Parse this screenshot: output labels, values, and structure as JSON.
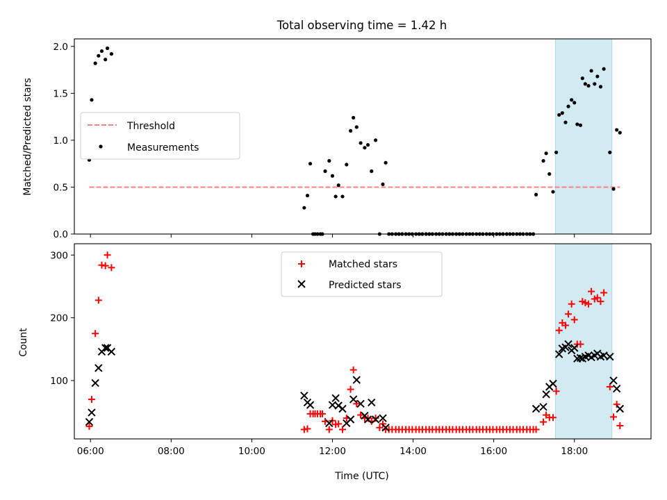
{
  "chart_data": [
    {
      "type": "scatter",
      "title": "Total observing time = 1.42 h",
      "xlabel": "",
      "ylabel": "Matched/Predicted stars",
      "xlim": [
        5.6,
        19.9
      ],
      "ylim": [
        0,
        2.08
      ],
      "yticks": [
        "0.0",
        "0.5",
        "1.0",
        "1.5",
        "2.0"
      ],
      "shaded_span": [
        17.53,
        18.93
      ],
      "shade_color": "#add8e6",
      "legend_loc": "center-left",
      "series": [
        {
          "name": "Threshold",
          "style": "dashed-line",
          "color": "#ff7f7f",
          "x": [
            5.97,
            19.13
          ],
          "y": [
            0.5,
            0.5
          ]
        },
        {
          "name": "Measurements",
          "style": "dot",
          "color": "#000000",
          "points": [
            [
              5.97,
              0.79
            ],
            [
              6.03,
              1.43
            ],
            [
              6.12,
              1.82
            ],
            [
              6.2,
              1.9
            ],
            [
              6.28,
              1.95
            ],
            [
              6.37,
              1.86
            ],
            [
              6.42,
              1.98
            ],
            [
              6.52,
              1.92
            ],
            [
              11.3,
              0.28
            ],
            [
              11.38,
              0.41
            ],
            [
              11.45,
              0.75
            ],
            [
              11.52,
              0
            ],
            [
              11.57,
              0
            ],
            [
              11.63,
              0
            ],
            [
              11.7,
              0
            ],
            [
              11.75,
              0
            ],
            [
              11.82,
              0.67
            ],
            [
              11.92,
              0.78
            ],
            [
              12.0,
              0.62
            ],
            [
              12.08,
              0.4
            ],
            [
              12.15,
              0.52
            ],
            [
              12.25,
              0.4
            ],
            [
              12.35,
              0.74
            ],
            [
              12.45,
              1.1
            ],
            [
              12.52,
              1.24
            ],
            [
              12.6,
              1.14
            ],
            [
              12.7,
              0.97
            ],
            [
              12.8,
              0.92
            ],
            [
              12.88,
              0.95
            ],
            [
              12.97,
              0.67
            ],
            [
              13.07,
              1.0
            ],
            [
              13.17,
              0
            ],
            [
              13.25,
              0.53
            ],
            [
              13.32,
              0.76
            ],
            [
              13.4,
              0
            ],
            [
              13.48,
              0
            ],
            [
              13.57,
              0
            ],
            [
              13.65,
              0
            ],
            [
              13.73,
              0
            ],
            [
              13.82,
              0
            ],
            [
              13.9,
              0
            ],
            [
              13.98,
              0
            ],
            [
              14.07,
              0
            ],
            [
              14.15,
              0
            ],
            [
              14.23,
              0
            ],
            [
              14.32,
              0
            ],
            [
              14.4,
              0
            ],
            [
              14.48,
              0
            ],
            [
              14.57,
              0
            ],
            [
              14.65,
              0
            ],
            [
              14.73,
              0
            ],
            [
              14.82,
              0
            ],
            [
              14.9,
              0
            ],
            [
              14.98,
              0
            ],
            [
              15.07,
              0
            ],
            [
              15.15,
              0
            ],
            [
              15.23,
              0
            ],
            [
              15.32,
              0
            ],
            [
              15.4,
              0
            ],
            [
              15.48,
              0
            ],
            [
              15.57,
              0
            ],
            [
              15.65,
              0
            ],
            [
              15.73,
              0
            ],
            [
              15.82,
              0
            ],
            [
              15.9,
              0
            ],
            [
              15.98,
              0
            ],
            [
              16.07,
              0
            ],
            [
              16.15,
              0
            ],
            [
              16.23,
              0
            ],
            [
              16.32,
              0
            ],
            [
              16.4,
              0
            ],
            [
              16.48,
              0
            ],
            [
              16.57,
              0
            ],
            [
              16.65,
              0
            ],
            [
              16.73,
              0
            ],
            [
              16.82,
              0
            ],
            [
              16.9,
              0
            ],
            [
              16.98,
              0
            ],
            [
              17.05,
              0.42
            ],
            [
              17.23,
              0.78
            ],
            [
              17.3,
              0.86
            ],
            [
              17.38,
              0.64
            ],
            [
              17.47,
              0.45
            ],
            [
              17.55,
              0.87
            ],
            [
              17.62,
              1.27
            ],
            [
              17.7,
              1.29
            ],
            [
              17.78,
              1.19
            ],
            [
              17.85,
              1.36
            ],
            [
              17.93,
              1.43
            ],
            [
              18.0,
              1.4
            ],
            [
              18.07,
              1.17
            ],
            [
              18.15,
              1.16
            ],
            [
              18.2,
              1.66
            ],
            [
              18.27,
              1.6
            ],
            [
              18.35,
              1.58
            ],
            [
              18.42,
              1.74
            ],
            [
              18.5,
              1.6
            ],
            [
              18.57,
              1.68
            ],
            [
              18.65,
              1.57
            ],
            [
              18.73,
              1.76
            ],
            [
              18.88,
              0.87
            ],
            [
              18.97,
              0.48
            ],
            [
              19.05,
              1.11
            ],
            [
              19.13,
              1.08
            ]
          ]
        }
      ]
    },
    {
      "type": "scatter",
      "title": "",
      "xlabel": "Time (UTC)",
      "ylabel": "Count",
      "xlim": [
        5.6,
        19.9
      ],
      "ylim": [
        7,
        318
      ],
      "yticks": [
        "100",
        "200",
        "300"
      ],
      "xticks": [
        "06:00",
        "08:00",
        "10:00",
        "12:00",
        "14:00",
        "16:00",
        "18:00"
      ],
      "shaded_span": [
        17.53,
        18.93
      ],
      "shade_color": "#add8e6",
      "legend_loc": "upper-center",
      "series": [
        {
          "name": "Matched stars",
          "marker": "plus",
          "color": "#ff0000",
          "points": [
            [
              5.97,
              27
            ],
            [
              6.03,
              70
            ],
            [
              6.12,
              175
            ],
            [
              6.2,
              228
            ],
            [
              6.28,
              284
            ],
            [
              6.37,
              283
            ],
            [
              6.42,
              300
            ],
            [
              6.52,
              280
            ],
            [
              11.3,
              22
            ],
            [
              11.38,
              23
            ],
            [
              11.45,
              47
            ],
            [
              11.52,
              47
            ],
            [
              11.57,
              47
            ],
            [
              11.63,
              47
            ],
            [
              11.7,
              47
            ],
            [
              11.75,
              47
            ],
            [
              11.82,
              35
            ],
            [
              11.92,
              22
            ],
            [
              12.0,
              36
            ],
            [
              12.08,
              30
            ],
            [
              12.15,
              31
            ],
            [
              12.25,
              22
            ],
            [
              12.35,
              40
            ],
            [
              12.45,
              86
            ],
            [
              12.52,
              117
            ],
            [
              12.6,
              63
            ],
            [
              12.7,
              45
            ],
            [
              12.8,
              40
            ],
            [
              12.88,
              40
            ],
            [
              12.97,
              35
            ],
            [
              13.07,
              40
            ],
            [
              13.17,
              25
            ],
            [
              13.25,
              31
            ],
            [
              13.32,
              22
            ],
            [
              13.4,
              22
            ],
            [
              13.48,
              22
            ],
            [
              13.57,
              22
            ],
            [
              13.65,
              22
            ],
            [
              13.73,
              22
            ],
            [
              13.82,
              22
            ],
            [
              13.9,
              22
            ],
            [
              13.98,
              22
            ],
            [
              14.07,
              22
            ],
            [
              14.15,
              22
            ],
            [
              14.23,
              22
            ],
            [
              14.32,
              22
            ],
            [
              14.4,
              22
            ],
            [
              14.48,
              22
            ],
            [
              14.57,
              22
            ],
            [
              14.65,
              22
            ],
            [
              14.73,
              22
            ],
            [
              14.82,
              22
            ],
            [
              14.9,
              22
            ],
            [
              14.98,
              22
            ],
            [
              15.07,
              22
            ],
            [
              15.15,
              22
            ],
            [
              15.23,
              22
            ],
            [
              15.32,
              22
            ],
            [
              15.4,
              22
            ],
            [
              15.48,
              22
            ],
            [
              15.57,
              22
            ],
            [
              15.65,
              22
            ],
            [
              15.73,
              22
            ],
            [
              15.82,
              22
            ],
            [
              15.9,
              22
            ],
            [
              15.98,
              22
            ],
            [
              16.07,
              22
            ],
            [
              16.15,
              22
            ],
            [
              16.23,
              22
            ],
            [
              16.32,
              22
            ],
            [
              16.4,
              22
            ],
            [
              16.48,
              22
            ],
            [
              16.57,
              22
            ],
            [
              16.65,
              22
            ],
            [
              16.73,
              22
            ],
            [
              16.82,
              22
            ],
            [
              16.9,
              22
            ],
            [
              16.98,
              22
            ],
            [
              17.05,
              22
            ],
            [
              17.23,
              34
            ],
            [
              17.3,
              45
            ],
            [
              17.38,
              41
            ],
            [
              17.47,
              41
            ],
            [
              17.55,
              83
            ],
            [
              17.62,
              180
            ],
            [
              17.7,
              192
            ],
            [
              17.78,
              188
            ],
            [
              17.85,
              206
            ],
            [
              17.93,
              222
            ],
            [
              18.0,
              197
            ],
            [
              18.07,
              158
            ],
            [
              18.15,
              158
            ],
            [
              18.2,
              226
            ],
            [
              18.27,
              224
            ],
            [
              18.35,
              222
            ],
            [
              18.42,
              242
            ],
            [
              18.5,
              230
            ],
            [
              18.57,
              232
            ],
            [
              18.65,
              226
            ],
            [
              18.73,
              240
            ],
            [
              18.88,
              90
            ],
            [
              18.97,
              42
            ],
            [
              19.05,
              62
            ],
            [
              19.13,
              28
            ]
          ]
        },
        {
          "name": "Predicted stars",
          "marker": "x",
          "color": "#000000",
          "points": [
            [
              5.97,
              34
            ],
            [
              6.03,
              49
            ],
            [
              6.12,
              96
            ],
            [
              6.2,
              120
            ],
            [
              6.28,
              146
            ],
            [
              6.37,
              152
            ],
            [
              6.42,
              152
            ],
            [
              6.52,
              146
            ],
            [
              11.3,
              76
            ],
            [
              11.38,
              65
            ],
            [
              11.45,
              61
            ],
            [
              11.92,
              32
            ],
            [
              12.0,
              61
            ],
            [
              12.08,
              72
            ],
            [
              12.15,
              60
            ],
            [
              12.25,
              55
            ],
            [
              12.35,
              32
            ],
            [
              12.45,
              38
            ],
            [
              12.52,
              70
            ],
            [
              12.6,
              101
            ],
            [
              12.7,
              63
            ],
            [
              12.8,
              44
            ],
            [
              12.88,
              38
            ],
            [
              12.97,
              65
            ],
            [
              13.07,
              38
            ],
            [
              13.25,
              40
            ],
            [
              13.32,
              25
            ],
            [
              17.05,
              55
            ],
            [
              17.23,
              58
            ],
            [
              17.3,
              78
            ],
            [
              17.38,
              90
            ],
            [
              17.47,
              95
            ],
            [
              17.62,
              142
            ],
            [
              17.7,
              151
            ],
            [
              17.78,
              153
            ],
            [
              17.85,
              158
            ],
            [
              17.93,
              148
            ],
            [
              18.0,
              152
            ],
            [
              18.07,
              135
            ],
            [
              18.15,
              136
            ],
            [
              18.2,
              135
            ],
            [
              18.27,
              138
            ],
            [
              18.35,
              140
            ],
            [
              18.42,
              137
            ],
            [
              18.5,
              140
            ],
            [
              18.57,
              143
            ],
            [
              18.65,
              138
            ],
            [
              18.73,
              140
            ],
            [
              18.88,
              138
            ],
            [
              18.97,
              100
            ],
            [
              19.05,
              87
            ],
            [
              19.13,
              55
            ]
          ]
        }
      ]
    }
  ]
}
